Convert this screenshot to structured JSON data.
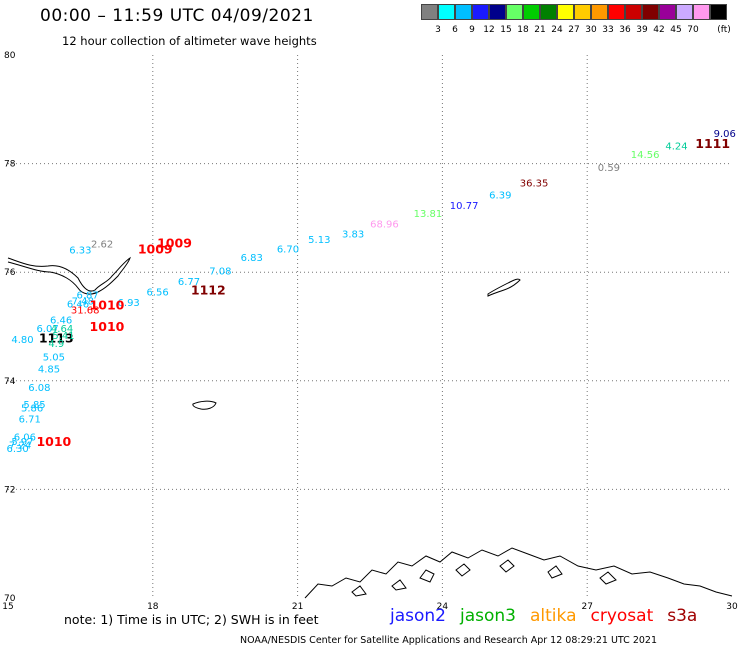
{
  "header": {
    "title": "00:00 – 11:59 UTC 04/09/2021",
    "subtitle": "12 hour collection of altimeter wave heights"
  },
  "scale": {
    "unit": "(ft)",
    "swatches": [
      {
        "color": "#808080",
        "label": ""
      },
      {
        "color": "#00ffff",
        "label": "3"
      },
      {
        "color": "#00bfff",
        "label": "6"
      },
      {
        "color": "#1a1aff",
        "label": "9"
      },
      {
        "color": "#00008b",
        "label": "12"
      },
      {
        "color": "#66ff66",
        "label": "15"
      },
      {
        "color": "#00cc00",
        "label": "18"
      },
      {
        "color": "#008000",
        "label": "21"
      },
      {
        "color": "#ffff00",
        "label": "24"
      },
      {
        "color": "#ffcc00",
        "label": "27"
      },
      {
        "color": "#ff9900",
        "label": "30"
      },
      {
        "color": "#ff0000",
        "label": "33"
      },
      {
        "color": "#cc0000",
        "label": "36"
      },
      {
        "color": "#800000",
        "label": "39"
      },
      {
        "color": "#990099",
        "label": "42"
      },
      {
        "color": "#ccaaff",
        "label": "45"
      },
      {
        "color": "#ff99ee",
        "label": "70"
      },
      {
        "color": "#000000",
        "label": ""
      }
    ]
  },
  "map": {
    "lon_range": [
      15,
      30
    ],
    "lat_range": [
      70,
      80
    ],
    "x_ticks": [
      {
        "value": 15,
        "label": "15"
      },
      {
        "value": 18,
        "label": "18"
      },
      {
        "value": 21,
        "label": "21"
      },
      {
        "value": 24,
        "label": "24"
      },
      {
        "value": 27,
        "label": "27"
      },
      {
        "value": 30,
        "label": "30"
      }
    ],
    "y_ticks": [
      {
        "value": 80,
        "label": "80"
      },
      {
        "value": 78,
        "label": "78"
      },
      {
        "value": 76,
        "label": "76"
      },
      {
        "value": 74,
        "label": "74"
      },
      {
        "value": 72,
        "label": "72"
      },
      {
        "value": 70,
        "label": "70"
      }
    ],
    "grid": "dotted",
    "labels": [
      {
        "lon": 29.85,
        "lat": 78.56,
        "text": "9.06",
        "color": "#00008b",
        "kind": "swh"
      },
      {
        "lon": 29.6,
        "lat": 78.36,
        "text": "1111",
        "color": "#800000",
        "kind": "orbit"
      },
      {
        "lon": 28.85,
        "lat": 78.33,
        "text": "4.24",
        "color": "#00cc99",
        "kind": "swh"
      },
      {
        "lon": 28.2,
        "lat": 78.18,
        "text": "14.56",
        "color": "#66ff66",
        "kind": "swh"
      },
      {
        "lon": 27.45,
        "lat": 77.94,
        "text": "0.59",
        "color": "#808080",
        "kind": "swh"
      },
      {
        "lon": 25.9,
        "lat": 77.65,
        "text": "36.35",
        "color": "#800000",
        "kind": "swh"
      },
      {
        "lon": 25.2,
        "lat": 77.43,
        "text": "6.39",
        "color": "#00bfff",
        "kind": "swh"
      },
      {
        "lon": 24.45,
        "lat": 77.24,
        "text": "10.77",
        "color": "#1a1aff",
        "kind": "swh"
      },
      {
        "lon": 23.7,
        "lat": 77.09,
        "text": "13.81",
        "color": "#66ff66",
        "kind": "swh"
      },
      {
        "lon": 22.8,
        "lat": 76.9,
        "text": "68.96",
        "color": "#ff99ee",
        "kind": "swh"
      },
      {
        "lon": 22.15,
        "lat": 76.71,
        "text": "3.83",
        "color": "#00bfff",
        "kind": "swh"
      },
      {
        "lon": 21.45,
        "lat": 76.61,
        "text": "5.13",
        "color": "#00bfff",
        "kind": "swh"
      },
      {
        "lon": 20.8,
        "lat": 76.44,
        "text": "6.70",
        "color": "#00bfff",
        "kind": "swh"
      },
      {
        "lon": 20.05,
        "lat": 76.28,
        "text": "6.83",
        "color": "#00bfff",
        "kind": "swh"
      },
      {
        "lon": 19.4,
        "lat": 76.03,
        "text": "7.08",
        "color": "#00bfff",
        "kind": "swh"
      },
      {
        "lon": 18.75,
        "lat": 75.84,
        "text": "6.77",
        "color": "#00bfff",
        "kind": "swh"
      },
      {
        "lon": 18.1,
        "lat": 75.64,
        "text": "6.56",
        "color": "#00bfff",
        "kind": "swh"
      },
      {
        "lon": 18.45,
        "lat": 76.53,
        "text": "1009",
        "color": "#ff0000",
        "kind": "orbit"
      },
      {
        "lon": 18.05,
        "lat": 76.42,
        "text": "1009",
        "color": "#ff0000",
        "kind": "orbit"
      },
      {
        "lon": 16.95,
        "lat": 76.53,
        "text": "2.62",
        "color": "#808080",
        "kind": "swh"
      },
      {
        "lon": 16.5,
        "lat": 76.42,
        "text": "6.33",
        "color": "#00bfff",
        "kind": "swh"
      },
      {
        "lon": 19.15,
        "lat": 75.66,
        "text": "1112",
        "color": "#800000",
        "kind": "orbit"
      },
      {
        "lon": 16.65,
        "lat": 75.59,
        "text": "6.87",
        "color": "#00bfff",
        "kind": "swh"
      },
      {
        "lon": 16.55,
        "lat": 75.48,
        "text": "7.48",
        "color": "#00bfff",
        "kind": "swh"
      },
      {
        "lon": 16.45,
        "lat": 75.42,
        "text": "6.46",
        "color": "#00bfff",
        "kind": "swh"
      },
      {
        "lon": 17.5,
        "lat": 75.45,
        "text": "6.93",
        "color": "#00bfff",
        "kind": "swh"
      },
      {
        "lon": 17.05,
        "lat": 75.39,
        "text": "1010",
        "color": "#ff0000",
        "kind": "orbit"
      },
      {
        "lon": 16.6,
        "lat": 75.31,
        "text": "31.68",
        "color": "#ff0000",
        "kind": "swh"
      },
      {
        "lon": 16.1,
        "lat": 75.13,
        "text": "6.46",
        "color": "#00bfff",
        "kind": "swh"
      },
      {
        "lon": 15.82,
        "lat": 74.97,
        "text": "6.07",
        "color": "#00bfff",
        "kind": "swh"
      },
      {
        "lon": 16.12,
        "lat": 74.97,
        "text": "4.64",
        "color": "#00cc99",
        "kind": "swh"
      },
      {
        "lon": 17.05,
        "lat": 74.99,
        "text": "1010",
        "color": "#ff0000",
        "kind": "orbit"
      },
      {
        "lon": 15.3,
        "lat": 74.77,
        "text": "4.80",
        "color": "#00bfff",
        "kind": "swh"
      },
      {
        "lon": 16.0,
        "lat": 74.78,
        "text": "1113",
        "color": "#000000",
        "kind": "orbit"
      },
      {
        "lon": 16.15,
        "lat": 74.84,
        "text": "5.41",
        "color": "#00cc99",
        "kind": "swh"
      },
      {
        "lon": 16.0,
        "lat": 74.7,
        "text": "4.9",
        "color": "#00cc99",
        "kind": "swh"
      },
      {
        "lon": 15.95,
        "lat": 74.45,
        "text": "5.05",
        "color": "#00bfff",
        "kind": "swh"
      },
      {
        "lon": 15.85,
        "lat": 74.23,
        "text": "4.85",
        "color": "#00bfff",
        "kind": "swh"
      },
      {
        "lon": 15.65,
        "lat": 73.89,
        "text": "6.08",
        "color": "#00bfff",
        "kind": "swh"
      },
      {
        "lon": 15.55,
        "lat": 73.57,
        "text": "5.85",
        "color": "#00bfff",
        "kind": "swh"
      },
      {
        "lon": 15.5,
        "lat": 73.51,
        "text": "5.86",
        "color": "#00bfff",
        "kind": "swh"
      },
      {
        "lon": 15.45,
        "lat": 73.31,
        "text": "6.71",
        "color": "#00bfff",
        "kind": "swh"
      },
      {
        "lon": 15.35,
        "lat": 72.97,
        "text": "6.06",
        "color": "#00bfff",
        "kind": "swh"
      },
      {
        "lon": 15.3,
        "lat": 72.89,
        "text": "5.97",
        "color": "#00bfff",
        "kind": "swh"
      },
      {
        "lon": 15.25,
        "lat": 72.83,
        "text": "7.24",
        "color": "#00bfff",
        "kind": "swh"
      },
      {
        "lon": 15.2,
        "lat": 72.76,
        "text": "6.30",
        "color": "#00bfff",
        "kind": "swh"
      },
      {
        "lon": 15.95,
        "lat": 72.87,
        "text": "1010",
        "color": "#ff0000",
        "kind": "orbit"
      }
    ]
  },
  "footer": {
    "note": "note: 1) Time is in UTC; 2) SWH is in feet",
    "satellites": [
      {
        "name": "jason2",
        "color": "#1a1aff"
      },
      {
        "name": "jason3",
        "color": "#00b000"
      },
      {
        "name": "altika",
        "color": "#ff9900"
      },
      {
        "name": "cryosat",
        "color": "#ff0000"
      },
      {
        "name": "s3a",
        "color": "#a00000"
      }
    ],
    "credit": "NOAA/NESDIS Center for Satellite Applications and Research    Apr 12 08:29:21 UTC 2021"
  }
}
